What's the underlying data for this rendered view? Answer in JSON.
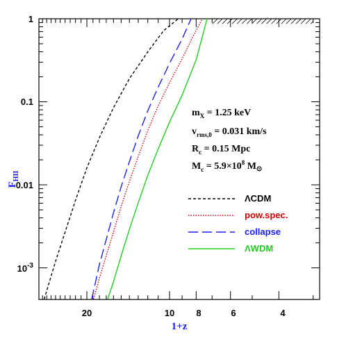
{
  "chart_data": {
    "type": "line",
    "title": "",
    "xlabel": "1+z",
    "ylabel": "F_HII",
    "xscale": "log",
    "yscale": "log",
    "xlim": [
      30,
      3
    ],
    "ylim": [
      0.00043,
      1
    ],
    "x_ticks": [
      "20",
      "10",
      "8",
      "6",
      "4"
    ],
    "y_ticks": [
      "1",
      "0.1",
      "0.01",
      "10^-3"
    ],
    "annotations": [
      {
        "id": "mx",
        "base": "m",
        "sub": "X",
        "rest": " = 1.25 keV"
      },
      {
        "id": "vrms",
        "base": "v",
        "sub": "rms,0",
        "rest": " = 0.031 km/s"
      },
      {
        "id": "rc",
        "base": "R",
        "sub": "c",
        "rest": " = 0.15 Mpc"
      },
      {
        "id": "mc",
        "base": "M",
        "sub": "c",
        "rest": " = 5.9×10",
        "sup": "8",
        "rest2": " M",
        "sub2": "⊙"
      }
    ],
    "legend_position": "lower-right",
    "series": [
      {
        "name": "ΛCDM",
        "color": "#000000",
        "dash": "4,3",
        "x": [
          28.6,
          26,
          24,
          22,
          20,
          18,
          16,
          14,
          12,
          10.5,
          9.3
        ],
        "y": [
          0.00042,
          0.0012,
          0.0027,
          0.0065,
          0.016,
          0.037,
          0.085,
          0.19,
          0.4,
          0.72,
          1.0
        ]
      },
      {
        "name": "pow.spec.",
        "color": "#d40000",
        "dash": "1.5,2",
        "x": [
          18.9,
          18,
          17,
          16,
          15,
          14,
          13,
          12,
          11,
          10,
          9,
          8.2,
          7.6
        ],
        "y": [
          0.00042,
          0.00075,
          0.0014,
          0.0027,
          0.0055,
          0.011,
          0.022,
          0.045,
          0.089,
          0.17,
          0.33,
          0.62,
          1.0
        ]
      },
      {
        "name": "collapse",
        "color": "#1a1aff",
        "dash": "14,6",
        "x": [
          19.2,
          18,
          17,
          16,
          15,
          14,
          13,
          12,
          11,
          10,
          9,
          8.35
        ],
        "y": [
          0.00042,
          0.0011,
          0.0022,
          0.0046,
          0.0095,
          0.019,
          0.039,
          0.078,
          0.15,
          0.29,
          0.57,
          1.0
        ]
      },
      {
        "name": "ΛWDM",
        "color": "#22cc22",
        "dash": "",
        "x": [
          16.8,
          16,
          15,
          14,
          13,
          12,
          11,
          10,
          9,
          8,
          7.3
        ],
        "y": [
          0.00042,
          0.00068,
          0.0014,
          0.0029,
          0.0061,
          0.013,
          0.027,
          0.057,
          0.12,
          0.32,
          1.0
        ]
      }
    ],
    "hatched_region": {
      "x": [
        7.0,
        3.0
      ],
      "y": [
        0.87,
        1.0
      ]
    }
  }
}
